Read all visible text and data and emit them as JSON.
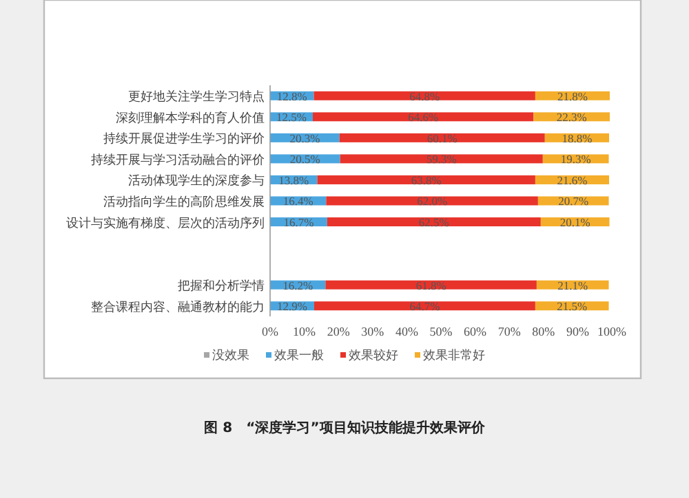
{
  "chart_data": {
    "type": "bar",
    "orientation": "horizontal",
    "stacked": true,
    "categories": [
      "更好地关注学生学习特点",
      "深刻理解本学科的育人价值",
      "持续开展促进学生学习的评价",
      "持续开展与学习活动融合的评价",
      "活动体现学生的深度参与",
      "活动指向学生的高阶思维发展",
      "设计与实施有梯度、层次的活动序列",
      null,
      null,
      "把握和分析学情",
      "整合课程内容、融通教材的能力"
    ],
    "series": [
      {
        "name": "没效果",
        "color": "#a6a6a6",
        "values": [
          null,
          null,
          null,
          null,
          null,
          null,
          null,
          null,
          null,
          null,
          null
        ]
      },
      {
        "name": "效果一般",
        "color": "#4ba6df",
        "values": [
          12.8,
          12.5,
          20.3,
          20.5,
          13.8,
          16.4,
          16.7,
          null,
          null,
          16.2,
          12.9
        ],
        "value_labels": [
          "12.8%",
          "12.5%",
          "20.3%",
          "20.5%",
          "13.8%",
          "16.4%",
          "16.7%",
          null,
          null,
          "16.2%",
          "12.9%"
        ]
      },
      {
        "name": "效果较好",
        "color": "#e8332b",
        "values": [
          64.8,
          64.6,
          60.1,
          59.3,
          63.8,
          62.0,
          62.5,
          null,
          null,
          61.8,
          64.7
        ],
        "value_labels": [
          "64.8%",
          "64.6%",
          "60.1%",
          "59.3%",
          "63.8%",
          "62.0%",
          "62.5%",
          null,
          null,
          "61.8%",
          "64.7%"
        ]
      },
      {
        "name": "效果非常好",
        "color": "#f4ae2b",
        "values": [
          21.8,
          22.3,
          18.8,
          19.3,
          21.6,
          20.7,
          20.1,
          null,
          null,
          21.1,
          21.5
        ],
        "value_labels": [
          "21.8%",
          "22.3%",
          "18.8%",
          "19.3%",
          "21.6%",
          "20.7%",
          "20.1%",
          null,
          null,
          "21.1%",
          "21.5%"
        ]
      }
    ],
    "xlim": [
      0,
      100
    ],
    "xticks": [
      {
        "value": 0,
        "label": "0%"
      },
      {
        "value": 10,
        "label": "10%"
      },
      {
        "value": 20,
        "label": "20%"
      },
      {
        "value": 30,
        "label": "30%"
      },
      {
        "value": 40,
        "label": "40%"
      },
      {
        "value": 50,
        "label": "50%"
      },
      {
        "value": 60,
        "label": "60%"
      },
      {
        "value": 70,
        "label": "70%"
      },
      {
        "value": 80,
        "label": "80%"
      },
      {
        "value": 90,
        "label": "90%"
      },
      {
        "value": 100,
        "label": "100%"
      }
    ],
    "grid": false,
    "legend": "bottom",
    "annotations": [
      "图 8　“深度学习”项目知识技能提升效果评价"
    ]
  }
}
